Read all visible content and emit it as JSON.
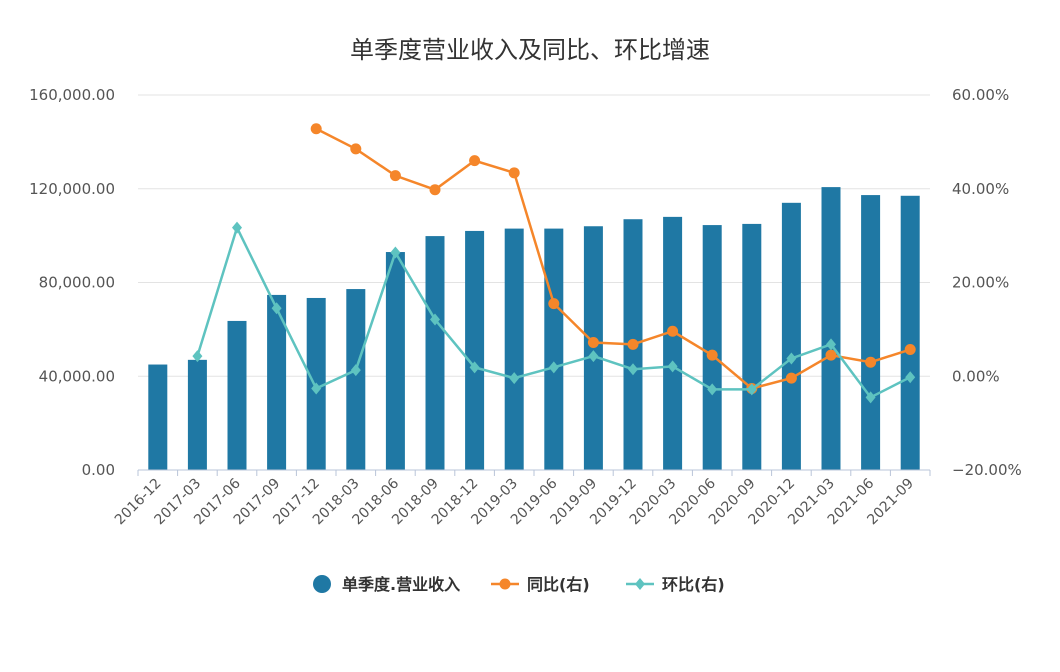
{
  "chart_data": {
    "type": "bar+line",
    "title": "单季度营业收入及同比、环比增速",
    "categories": [
      "2016-12",
      "2017-03",
      "2017-06",
      "2017-09",
      "2017-12",
      "2018-03",
      "2018-06",
      "2018-09",
      "2018-12",
      "2019-03",
      "2019-06",
      "2019-09",
      "2019-12",
      "2020-03",
      "2020-06",
      "2020-09",
      "2020-12",
      "2021-03",
      "2021-06",
      "2021-09"
    ],
    "y_left": {
      "ylim": [
        0,
        160000
      ],
      "ticks": [
        "0.00",
        "40,000.00",
        "80,000.00",
        "120,000.00",
        "160,000.00"
      ],
      "tick_values": [
        0,
        40000,
        80000,
        120000,
        160000
      ]
    },
    "y_right": {
      "ylim": [
        -20,
        60
      ],
      "ticks": [
        "−20.00%",
        "0.00%",
        "20.00%",
        "40.00%",
        "60.00%"
      ],
      "tick_values": [
        -20,
        0,
        20,
        40,
        60
      ]
    },
    "grid": true,
    "legend_position": "bottom",
    "series": [
      {
        "name": "单季度.营业收入",
        "type": "bar",
        "axis": "left",
        "color": "#1f78a4",
        "values": [
          45000,
          47000,
          63600,
          74700,
          73400,
          77200,
          93000,
          99800,
          102000,
          103000,
          103000,
          104000,
          107000,
          108000,
          104500,
          105000,
          114000,
          120700,
          117300,
          117000
        ]
      },
      {
        "name": "同比(右)",
        "type": "line",
        "axis": "right",
        "color": "#f5862a",
        "marker": "circle",
        "values": [
          null,
          null,
          null,
          null,
          52.8,
          48.5,
          42.8,
          39.8,
          46.0,
          43.4,
          15.5,
          7.2,
          6.8,
          9.6,
          4.5,
          -2.6,
          -0.4,
          4.5,
          3.0,
          5.7
        ]
      },
      {
        "name": "环比(右)",
        "type": "line",
        "axis": "right",
        "color": "#5ec3c0",
        "marker": "diamond",
        "values": [
          null,
          4.3,
          31.7,
          14.5,
          -2.6,
          1.3,
          26.4,
          12.1,
          1.9,
          -0.4,
          1.9,
          4.3,
          1.5,
          2.1,
          -2.8,
          -2.8,
          3.8,
          6.8,
          -4.5,
          -0.2
        ]
      }
    ]
  }
}
